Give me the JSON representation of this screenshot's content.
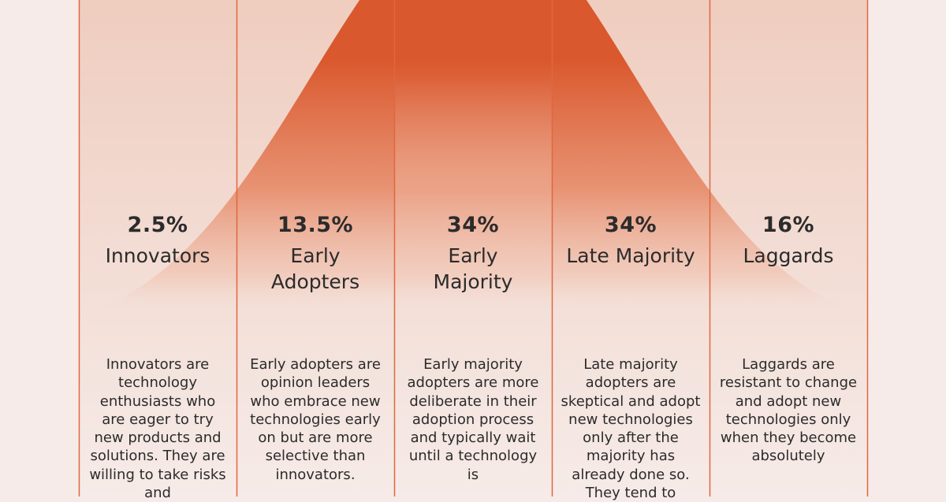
{
  "chart_data": {
    "type": "area",
    "title": "",
    "xlabel": "",
    "ylabel": "",
    "series": [
      {
        "name": "",
        "x": [],
        "values": []
      }
    ],
    "segments": [
      {
        "percent": "2.5%",
        "label": "Innovators",
        "description": "Innovators are technology enthusiasts who are eager to try new products and solutions. They are willing to take risks and"
      },
      {
        "percent": "13.5%",
        "label": "Early Adopters",
        "description": "Early adopters are opinion leaders who embrace new technologies early on but are more selective than innovators."
      },
      {
        "percent": "34%",
        "label": "Early Majority",
        "description": "Early majority adopters are more deliberate in their adoption process and typically wait until a technology is"
      },
      {
        "percent": "34%",
        "label": "Late Majority",
        "description": "Late majority adopters are skeptical and adopt new technologies only after the majority has already done so. They tend to"
      },
      {
        "percent": "16%",
        "label": "Laggards",
        "description": "Laggards are resistant to change and adopt new technologies only when they become absolutely"
      }
    ],
    "colors": {
      "background": "#f6ebe8",
      "curve": "#da582d",
      "column_tint": "#efcfc3",
      "divider": "#e0673f",
      "text": "#2b2b2b"
    }
  }
}
